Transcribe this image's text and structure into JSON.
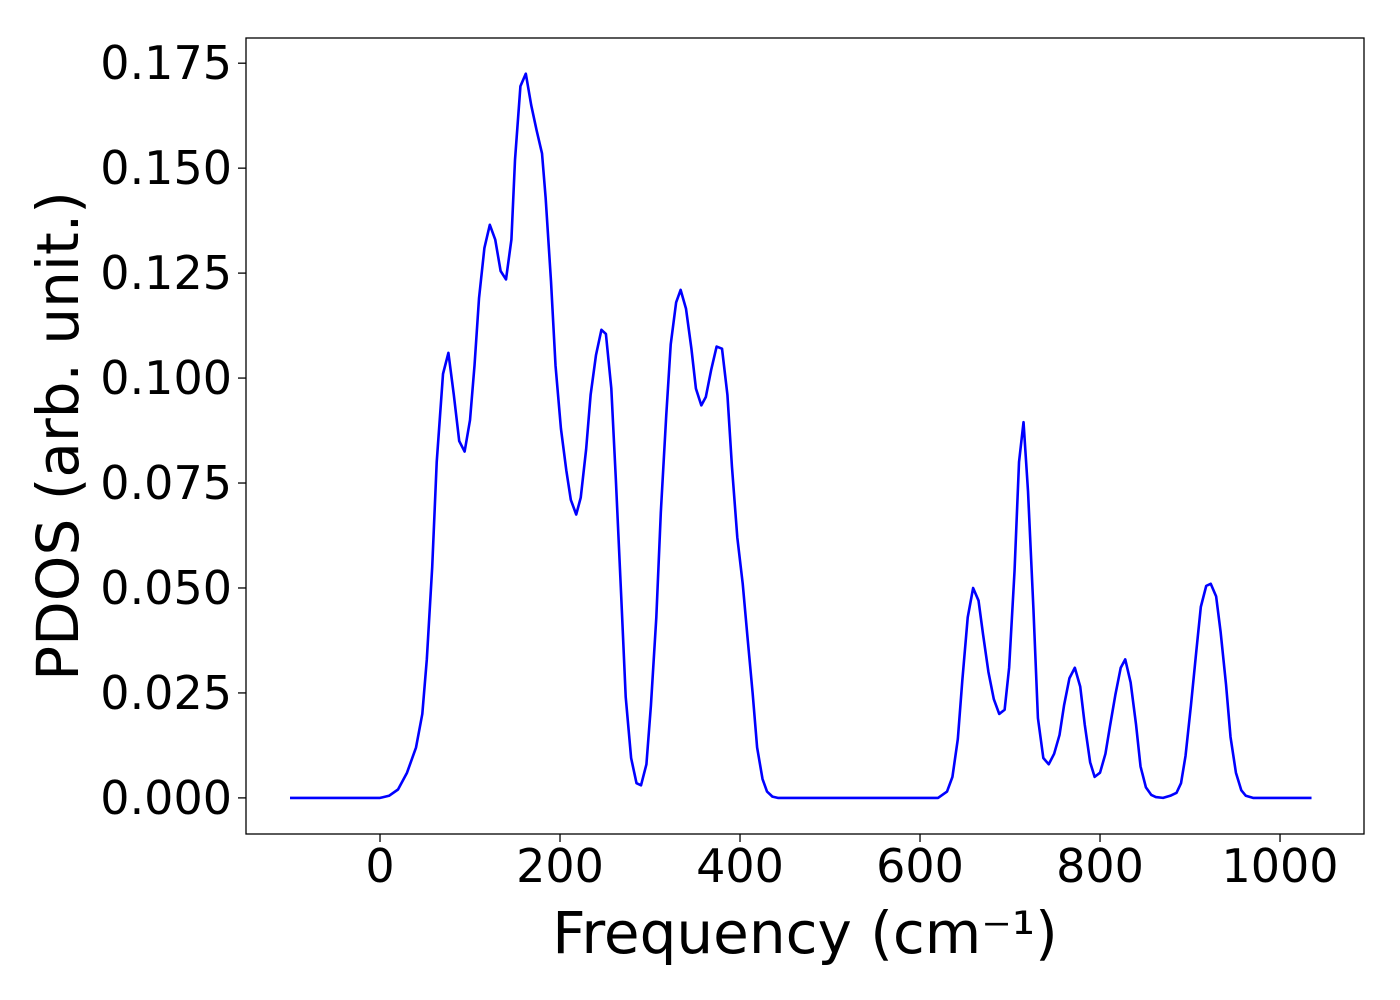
{
  "chart_data": {
    "type": "line",
    "x_label": "Frequency (cm⁻¹)",
    "y_label": "PDOS (arb. unit.)",
    "x": [
      -100,
      0,
      10,
      20,
      30,
      40,
      47,
      52,
      58,
      63,
      70,
      76,
      82,
      88,
      94,
      100,
      105,
      110,
      116,
      122,
      128,
      134,
      140,
      146,
      150,
      156,
      162,
      168,
      174,
      180,
      184,
      190,
      195,
      201,
      207,
      212,
      218,
      223,
      229,
      234,
      240,
      246,
      251,
      257,
      262,
      268,
      273,
      279,
      285,
      290,
      296,
      301,
      307,
      312,
      318,
      323,
      329,
      334,
      340,
      346,
      351,
      357,
      362,
      368,
      374,
      380,
      386,
      391,
      397,
      403,
      408,
      414,
      419,
      425,
      430,
      436,
      442,
      600,
      620,
      630,
      636,
      642,
      647,
      653,
      659,
      665,
      670,
      676,
      682,
      688,
      694,
      699,
      705,
      710,
      715,
      720,
      726,
      731,
      737,
      743,
      749,
      755,
      760,
      766,
      772,
      778,
      783,
      789,
      794,
      800,
      806,
      811,
      817,
      823,
      828,
      834,
      840,
      845,
      851,
      857,
      862,
      870,
      878,
      885,
      890,
      895,
      901,
      907,
      912,
      918,
      923,
      929,
      934,
      940,
      945,
      951,
      957,
      962,
      970,
      1035
    ],
    "series": [
      {
        "color": "#0000ff",
        "values": [
          0,
          0,
          0.0005,
          0.002,
          0.006,
          0.012,
          0.02,
          0.033,
          0.055,
          0.08,
          0.101,
          0.106,
          0.096,
          0.085,
          0.0825,
          0.09,
          0.103,
          0.119,
          0.131,
          0.1365,
          0.133,
          0.1255,
          0.1235,
          0.133,
          0.152,
          0.1695,
          0.1725,
          0.165,
          0.159,
          0.1535,
          0.143,
          0.123,
          0.103,
          0.088,
          0.078,
          0.071,
          0.0675,
          0.0715,
          0.083,
          0.096,
          0.1055,
          0.1115,
          0.1105,
          0.0975,
          0.076,
          0.048,
          0.024,
          0.0095,
          0.0035,
          0.003,
          0.008,
          0.022,
          0.043,
          0.068,
          0.091,
          0.108,
          0.118,
          0.121,
          0.1165,
          0.107,
          0.0975,
          0.0935,
          0.0955,
          0.102,
          0.1075,
          0.107,
          0.096,
          0.079,
          0.062,
          0.051,
          0.039,
          0.025,
          0.012,
          0.0045,
          0.0015,
          0.0003,
          0,
          0,
          0,
          0.0015,
          0.005,
          0.014,
          0.028,
          0.043,
          0.05,
          0.047,
          0.039,
          0.03,
          0.0235,
          0.02,
          0.021,
          0.031,
          0.054,
          0.08,
          0.0895,
          0.073,
          0.045,
          0.019,
          0.0095,
          0.008,
          0.0105,
          0.015,
          0.022,
          0.0285,
          0.031,
          0.0265,
          0.0175,
          0.0085,
          0.005,
          0.006,
          0.0105,
          0.017,
          0.0245,
          0.031,
          0.033,
          0.0275,
          0.0175,
          0.0075,
          0.0025,
          0.0007,
          0.0002,
          0,
          0.0005,
          0.0012,
          0.0035,
          0.01,
          0.022,
          0.035,
          0.0455,
          0.0505,
          0.051,
          0.048,
          0.0395,
          0.027,
          0.0145,
          0.006,
          0.0018,
          0.0005,
          0,
          0
        ]
      }
    ],
    "xlim": [
      -148.9,
      1093.3
    ],
    "ylim": [
      -0.0086,
      0.181
    ],
    "xticks": [
      0,
      200,
      400,
      600,
      800,
      1000
    ],
    "yticks": [
      {
        "value": 0,
        "label": "0.000"
      },
      0.025,
      {
        "value": 0.05,
        "label": "0.050"
      },
      0.075,
      {
        "value": 0.1,
        "label": "0.100"
      },
      0.125,
      {
        "value": 0.15,
        "label": "0.150"
      },
      0.175
    ],
    "grid": false
  }
}
